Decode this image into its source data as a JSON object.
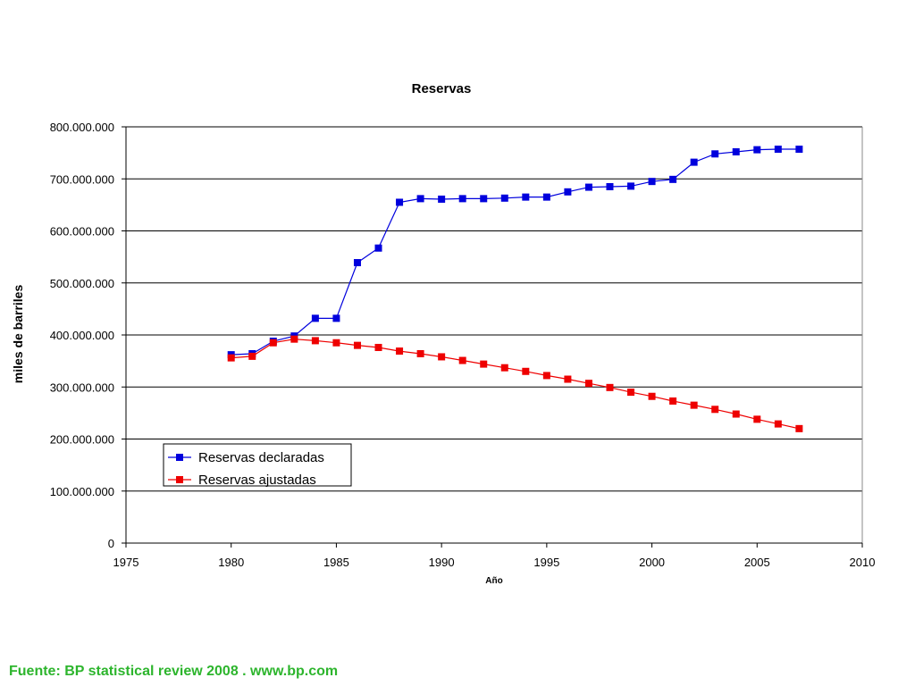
{
  "chart_data": {
    "type": "line",
    "title": "Reservas",
    "xlabel": "Año",
    "ylabel": "miles de barriles",
    "xlim": [
      1975,
      2010
    ],
    "ylim": [
      0,
      800000000
    ],
    "x_ticks": [
      "1975",
      "1980",
      "1985",
      "1990",
      "1995",
      "2000",
      "2005",
      "2010"
    ],
    "y_ticks": [
      "0",
      "100.000.000",
      "200.000.000",
      "300.000.000",
      "400.000.000",
      "500.000.000",
      "600.000.000",
      "700.000.000",
      "800.000.000"
    ],
    "grid": "horizontal",
    "legend": "lower-left",
    "x": [
      1980,
      1981,
      1982,
      1983,
      1984,
      1985,
      1986,
      1987,
      1988,
      1989,
      1990,
      1991,
      1992,
      1993,
      1994,
      1995,
      1996,
      1997,
      1998,
      1999,
      2000,
      2001,
      2002,
      2003,
      2004,
      2005,
      2006,
      2007
    ],
    "series": [
      {
        "name": "Reservas declaradas",
        "color": "#0000dd",
        "values": [
          362000000,
          364000000,
          388000000,
          398000000,
          432000000,
          432000000,
          539000000,
          567000000,
          655000000,
          662000000,
          661000000,
          662000000,
          662000000,
          663000000,
          665000000,
          665000000,
          675000000,
          684000000,
          685000000,
          686000000,
          695000000,
          699000000,
          732000000,
          748000000,
          752000000,
          756000000,
          757000000,
          757000000
        ]
      },
      {
        "name": "Reservas ajustadas",
        "color": "#ee0000",
        "values": [
          356000000,
          359000000,
          385000000,
          392000000,
          389000000,
          385000000,
          380000000,
          376000000,
          369000000,
          364000000,
          358000000,
          351000000,
          344000000,
          337000000,
          330000000,
          322000000,
          315000000,
          307000000,
          299000000,
          290000000,
          282000000,
          273000000,
          265000000,
          257000000,
          248000000,
          238000000,
          229000000,
          220000000
        ]
      }
    ]
  },
  "footer": {
    "source": "Fuente: BP statistical review 2008 . www.bp.com"
  }
}
